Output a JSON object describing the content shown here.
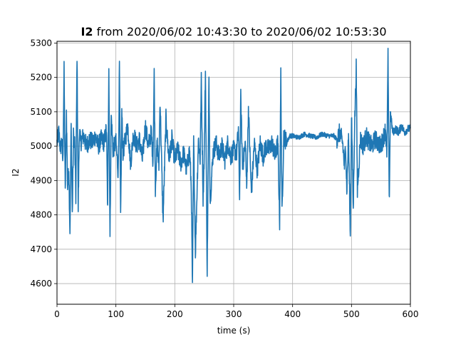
{
  "title": {
    "bold_part": "I2",
    "rest": " from 2020/06/02 10:43:30 to 2020/06/02 10:53:30"
  },
  "colors": {
    "series": "#1f77b4",
    "grid": "#b0b0b0",
    "axes": "#000000",
    "background": "#ffffff"
  },
  "chart_data": {
    "type": "line",
    "xlabel": "time (s)",
    "ylabel": "I2",
    "xlim": [
      0,
      600
    ],
    "ylim": [
      4540,
      5305
    ],
    "xticks": [
      0,
      100,
      200,
      300,
      400,
      500,
      600
    ],
    "yticks": [
      4600,
      4700,
      4800,
      4900,
      5000,
      5100,
      5200,
      5300
    ],
    "grid": true,
    "series": [
      {
        "style": "dense high-frequency noisy signal",
        "x": [
          0,
          3,
          6,
          8,
          10,
          12,
          14,
          16,
          18,
          20,
          22,
          24,
          26,
          28,
          30,
          32,
          34,
          36,
          38,
          40,
          45,
          50,
          55,
          60,
          65,
          70,
          75,
          80,
          84,
          86,
          88,
          90,
          92,
          95,
          100,
          104,
          106,
          108,
          110,
          112,
          115,
          120,
          125,
          130,
          135,
          140,
          145,
          150,
          155,
          160,
          163,
          165,
          167,
          170,
          173,
          175,
          180,
          185,
          190,
          195,
          200,
          205,
          210,
          215,
          220,
          225,
          228,
          230,
          232,
          235,
          240,
          243,
          245,
          248,
          250,
          252,
          255,
          258,
          260,
          265,
          270,
          275,
          280,
          285,
          290,
          295,
          300,
          305,
          308,
          310,
          312,
          315,
          320,
          322,
          325,
          330,
          335,
          340,
          345,
          350,
          355,
          360,
          365,
          370,
          375,
          378,
          380,
          382,
          385,
          390,
          395,
          400,
          410,
          420,
          430,
          440,
          450,
          460,
          470,
          475,
          480,
          485,
          488,
          490,
          492,
          495,
          498,
          500,
          503,
          505,
          508,
          510,
          515,
          520,
          525,
          530,
          535,
          540,
          545,
          550,
          555,
          558,
          560,
          562,
          564,
          566,
          570,
          575,
          580,
          585,
          590,
          595,
          600
        ],
        "y": [
          5010,
          5040,
          4990,
          5020,
          4950,
          5220,
          4860,
          5100,
          4880,
          4940,
          4750,
          5060,
          4800,
          5030,
          5010,
          4850,
          5270,
          4820,
          5050,
          5010,
          5030,
          5000,
          5020,
          5010,
          5030,
          5000,
          5020,
          5010,
          5050,
          4810,
          5240,
          4730,
          5090,
          4990,
          5010,
          4920,
          5230,
          4780,
          5100,
          4980,
          5010,
          5060,
          4950,
          5040,
          5000,
          5020,
          4960,
          5060,
          5000,
          5040,
          4960,
          5210,
          4880,
          5010,
          4940,
          5140,
          4780,
          5080,
          4960,
          5020,
          4960,
          4990,
          4950,
          4980,
          4930,
          4990,
          4880,
          4580,
          5020,
          4690,
          5020,
          4960,
          5190,
          4850,
          4980,
          5220,
          4630,
          5200,
          4840,
          4980,
          5010,
          4970,
          5000,
          4960,
          5010,
          4970,
          4990,
          4980,
          5050,
          4850,
          5140,
          4940,
          5010,
          4870,
          5110,
          4860,
          5010,
          4930,
          5010,
          4970,
          5000,
          4990,
          5010,
          4970,
          5010,
          4780,
          5210,
          4800,
          5030,
          5010,
          5030,
          5030,
          5025,
          5035,
          5030,
          5025,
          5035,
          5030,
          5030,
          5020,
          5040,
          5010,
          4940,
          5010,
          4870,
          5030,
          4730,
          5100,
          4810,
          5040,
          5230,
          4870,
          5020,
          5000,
          5030,
          5010,
          5000,
          5020,
          5010,
          5000,
          5030,
          5050,
          4960,
          5260,
          4830,
          5100,
          5040,
          5050,
          5040,
          5060,
          5040,
          5050,
          5050
        ]
      }
    ]
  }
}
